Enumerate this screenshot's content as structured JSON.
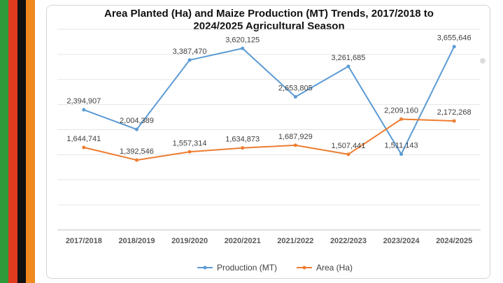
{
  "flag_colors": [
    "#2f9a3a",
    "#e03a1f",
    "#111111",
    "#f08a1e"
  ],
  "chart_data": {
    "type": "line",
    "title_line1": "Area Planted (Ha) and Maize Production (MT)  Trends, 2017/2018 to",
    "title_line2": "2024/2025 Agricultural Season",
    "categories": [
      "2017/2018",
      "2018/2019",
      "2019/2020",
      "2020/2021",
      "2021/2022",
      "2022/2023",
      "2023/2024",
      "2024/2025"
    ],
    "series": [
      {
        "name": "Production (MT)",
        "color": "#5b9bd5",
        "values": [
          2394907,
          2004389,
          3387470,
          3620125,
          2653805,
          3261685,
          1511143,
          3655646
        ],
        "labels": [
          "2,394,907",
          "2,004,389",
          "3,387,470",
          "3,620,125",
          "2,653,805",
          "3,261,685",
          "1,511,143",
          "3,655,646"
        ]
      },
      {
        "name": "Area (Ha)",
        "color": "#ed7d31",
        "values": [
          1644741,
          1392546,
          1557314,
          1634873,
          1687929,
          1507441,
          2209160,
          2172268
        ],
        "labels": [
          "1,644,741",
          "1,392,546",
          "1,557,314",
          "1,634,873",
          "1,687,929",
          "1,507,441",
          "2,209,160",
          "2,172,268"
        ]
      }
    ],
    "ylim": [
      0,
      4000000
    ],
    "grid": true,
    "legend_position": "bottom"
  }
}
